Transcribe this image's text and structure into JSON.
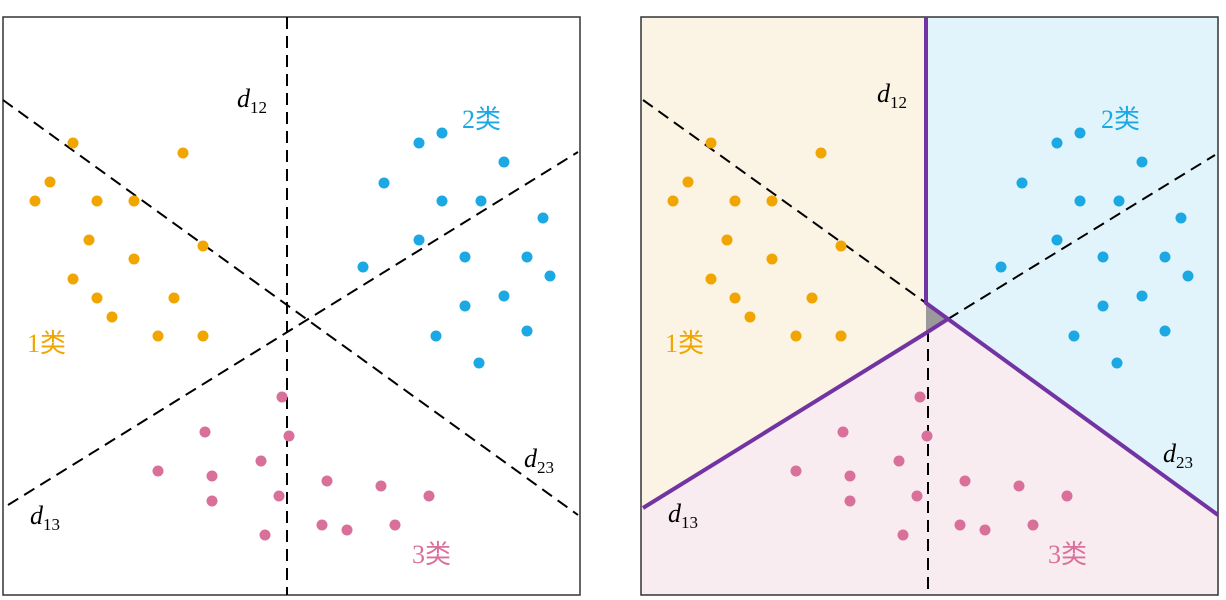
{
  "colors": {
    "class1": "#f0a500",
    "class2": "#1ba8e3",
    "class3": "#d9709a",
    "region1": "#fbf3e3",
    "region2": "#e2f4fb",
    "region3": "#f8ecf1",
    "boundary": "#7233a3",
    "ambiguous": "#9a9a9a"
  },
  "labels": {
    "class1": "1类",
    "class2": "2类",
    "class3": "3类",
    "d": "d",
    "d12_sub": "12",
    "d13_sub": "13",
    "d23_sub": "23"
  },
  "chart_data": {
    "type": "scatter",
    "note": "points in panel data units (x right, y down, panel 0-577)",
    "series": [
      {
        "name": "1类",
        "points": [
          [
            70,
            126
          ],
          [
            180,
            136
          ],
          [
            47,
            165
          ],
          [
            32,
            184
          ],
          [
            94,
            184
          ],
          [
            131,
            184
          ],
          [
            86,
            223
          ],
          [
            200,
            229
          ],
          [
            131,
            242
          ],
          [
            70,
            262
          ],
          [
            94,
            281
          ],
          [
            171,
            281
          ],
          [
            109,
            300
          ],
          [
            155,
            319
          ],
          [
            200,
            319
          ]
        ]
      },
      {
        "name": "2类",
        "points": [
          [
            439,
            116
          ],
          [
            416,
            126
          ],
          [
            501,
            145
          ],
          [
            381,
            166
          ],
          [
            439,
            184
          ],
          [
            478,
            184
          ],
          [
            540,
            201
          ],
          [
            416,
            223
          ],
          [
            360,
            250
          ],
          [
            462,
            240
          ],
          [
            524,
            240
          ],
          [
            547,
            259
          ],
          [
            501,
            279
          ],
          [
            462,
            289
          ],
          [
            524,
            314
          ],
          [
            433,
            319
          ],
          [
            476,
            346
          ]
        ]
      },
      {
        "name": "3类",
        "points": [
          [
            279,
            380
          ],
          [
            202,
            415
          ],
          [
            286,
            419
          ],
          [
            258,
            444
          ],
          [
            155,
            454
          ],
          [
            209,
            459
          ],
          [
            324,
            464
          ],
          [
            378,
            469
          ],
          [
            426,
            479
          ],
          [
            209,
            484
          ],
          [
            276,
            479
          ],
          [
            319,
            508
          ],
          [
            344,
            513
          ],
          [
            392,
            508
          ],
          [
            262,
            518
          ]
        ]
      }
    ]
  }
}
